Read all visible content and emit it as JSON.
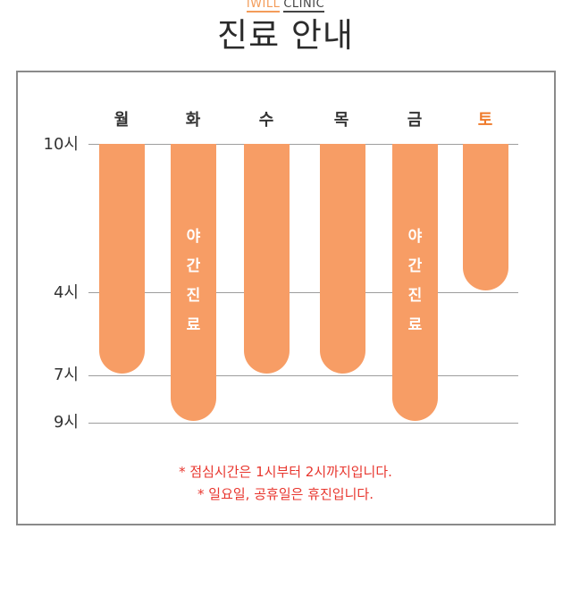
{
  "brand": {
    "part1": "IWILL",
    "part2": "CLINIC"
  },
  "title": "진료 안내",
  "days": [
    {
      "label": "월",
      "close_hour": 7
    },
    {
      "label": "화",
      "close_hour": 9,
      "note": [
        "야",
        "간",
        "진",
        "료"
      ]
    },
    {
      "label": "수",
      "close_hour": 7
    },
    {
      "label": "목",
      "close_hour": 7
    },
    {
      "label": "금",
      "close_hour": 9,
      "note": [
        "야",
        "간",
        "진",
        "료"
      ]
    },
    {
      "label": "토",
      "close_hour": 4
    }
  ],
  "open_hour": 10,
  "time_labels": [
    {
      "label": "10시",
      "hour": 10
    },
    {
      "label": "4시",
      "hour": 4
    },
    {
      "label": "7시",
      "hour": 7
    },
    {
      "label": "9시",
      "hour": 9
    }
  ],
  "notes": [
    "* 점심시간은 1시부터 2시까지입니다.",
    "* 일요일, 공휴일은 휴진입니다."
  ],
  "colors": {
    "bar": "#f79d65",
    "saturday": "#ef7a2a",
    "note_text": "#e8362e"
  }
}
